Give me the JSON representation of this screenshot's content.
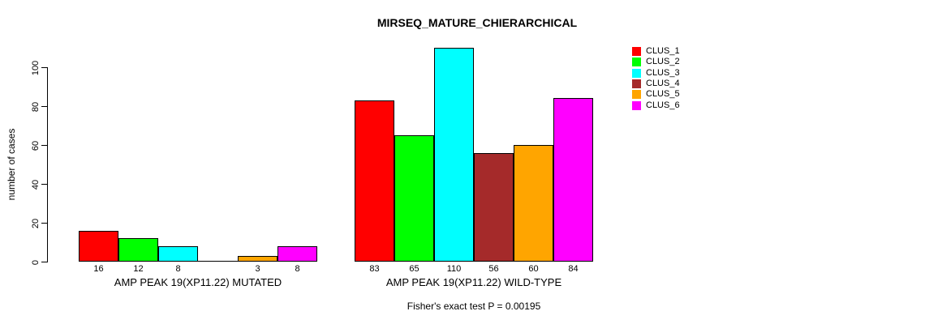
{
  "title": "MIRSEQ_MATURE_CHIERARCHICAL",
  "chart_data": {
    "type": "bar",
    "title": "MIRSEQ_MATURE_CHIERARCHICAL",
    "ylabel": "number of cases",
    "xlabel": "",
    "ylim": [
      0,
      115
    ],
    "yticks": [
      0,
      20,
      40,
      60,
      80,
      100
    ],
    "grid": false,
    "legend_position": "top-right",
    "series": [
      {
        "name": "CLUS_1",
        "color": "#FF0000"
      },
      {
        "name": "CLUS_2",
        "color": "#00FF00"
      },
      {
        "name": "CLUS_3",
        "color": "#00FFFF"
      },
      {
        "name": "CLUS_4",
        "color": "#A52A2A"
      },
      {
        "name": "CLUS_5",
        "color": "#FFA500"
      },
      {
        "name": "CLUS_6",
        "color": "#FF00FF"
      }
    ],
    "groups": [
      {
        "label": "AMP PEAK 19(XP11.22) MUTATED",
        "values": [
          16,
          12,
          8,
          0,
          3,
          8
        ],
        "value_labels": [
          "16",
          "12",
          "8",
          "",
          "3",
          "8"
        ]
      },
      {
        "label": "AMP PEAK 19(XP11.22) WILD-TYPE",
        "values": [
          83,
          65,
          110,
          56,
          60,
          84
        ],
        "value_labels": [
          "83",
          "65",
          "110",
          "56",
          "60",
          "84"
        ]
      }
    ],
    "footnote": "Fisher's exact test P = 0.00195",
    "bar_border_color": "#000000",
    "background_color": "#FFFFFF"
  }
}
